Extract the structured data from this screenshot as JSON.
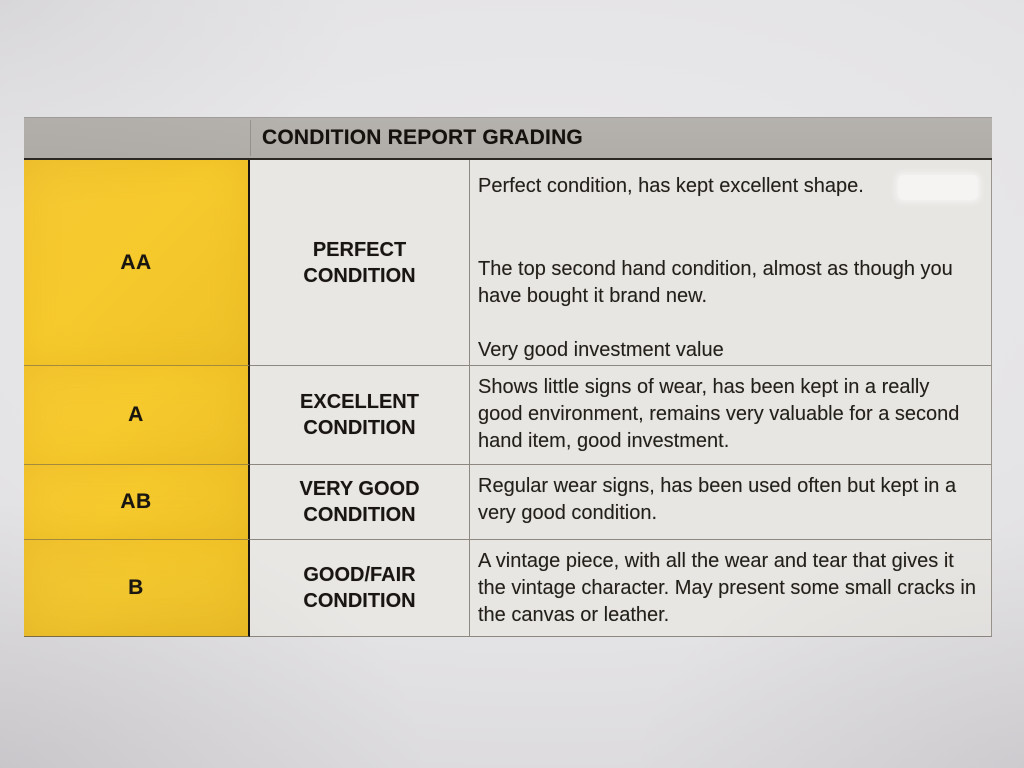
{
  "table": {
    "header": "CONDITION REPORT GRADING",
    "rows": [
      {
        "grade": "AA",
        "condition": "PERFECT CONDITION",
        "description_paragraphs": [
          "Perfect condition, has kept excellent shape.",
          "The top second hand condition, almost as though you have bought it brand new.",
          "Very good investment value"
        ]
      },
      {
        "grade": "A",
        "condition": "EXCELLENT CONDITION",
        "description_paragraphs": [
          "Shows little signs of wear, has been kept in a really good environment, remains very valuable for a second hand item, good investment."
        ]
      },
      {
        "grade": "AB",
        "condition": "VERY GOOD CONDITION",
        "description_paragraphs": [
          "Regular wear signs, has been used often but kept in a very good condition."
        ]
      },
      {
        "grade": "B",
        "condition": "GOOD/FAIR CONDITION",
        "description_paragraphs": [
          "A vintage piece, with all the wear and tear that gives it the vintage character. May present some small cracks in the canvas or leather."
        ]
      }
    ],
    "colors": {
      "grade_cell_bg": "#F4C72F",
      "header_bg": "#B2AFAA",
      "cell_bg": "#E8E6E3",
      "paper_bg": "#E3E2E4",
      "text": "#1F1C19"
    }
  }
}
